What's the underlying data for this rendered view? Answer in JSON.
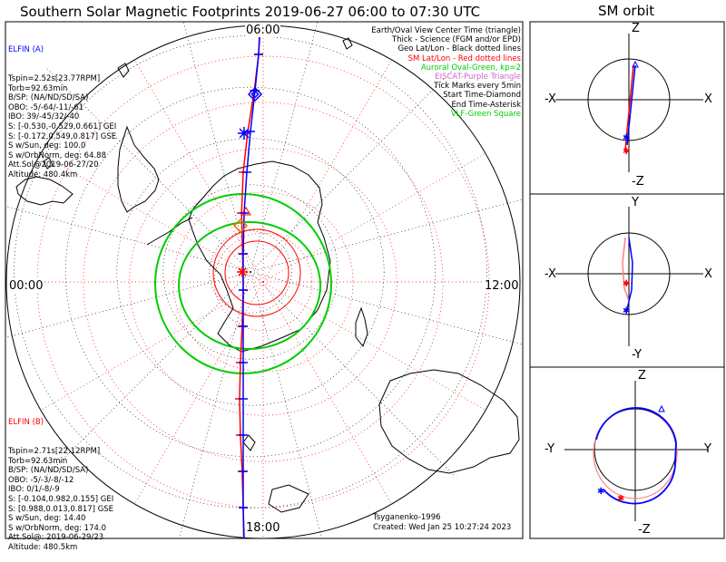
{
  "header": {
    "title": "Southern Solar Magnetic Footprints 2019-06-27 06:00 to 07:30 UTC",
    "sm_orbit_title": "SM orbit"
  },
  "map": {
    "clock_labels": {
      "top": "06:00",
      "left": "00:00",
      "right": "12:00",
      "bottom": "18:00"
    },
    "legend": [
      {
        "text": "Earth/Oval View Center Time (triangle)",
        "color": "#000000"
      },
      {
        "text": "Thick - Science (FGM and/or EPD)",
        "color": "#000000"
      },
      {
        "text": "Geo Lat/Lon - Black dotted lines",
        "color": "#000000"
      },
      {
        "text": "SM Lat/Lon - Red dotted lines",
        "color": "#ff0000"
      },
      {
        "text": "Auroral Oval-Green, kp=2",
        "color": "#00cc00"
      },
      {
        "text": "EISCAT-Purple Triangle",
        "color": "#cc66cc"
      },
      {
        "text": "Tick Marks every 5min",
        "color": "#000000"
      },
      {
        "text": "Start Time-Diamond",
        "color": "#000000"
      },
      {
        "text": "End Time-Asterisk",
        "color": "#000000"
      },
      {
        "text": "VLF-Green Square",
        "color": "#00cc00"
      }
    ],
    "elfin_a": {
      "title": "ELFIN (A)",
      "color": "#0000ff",
      "lines": [
        "Tspin=2.52s[23.77RPM]",
        "Torb=92.63min",
        "B/SP: (NA/ND/SD/SA)",
        "OBO: -5/-64/-11/-61",
        "IBO: 39/-45/32/-40",
        "S: [-0.530,-0.529,0.661] GEI",
        "S: [-0.172,0.549,0.817] GSE",
        "S w/Sun, deg: 100.0",
        "S w/OrbNorm, deg: 64.88",
        "Att.Sol@2019-06-27/20",
        "Altitude: 480.4km"
      ]
    },
    "elfin_b": {
      "title": "ELFIN (B)",
      "color": "#ff0000",
      "lines": [
        "Tspin=2.71s[22.12RPM]",
        "Torb=92.63min",
        "B/SP: (NA/ND/SD/SA)",
        "OBO: -5/-3/-8/-12",
        "IBO: 0/1/-8/-9",
        "S: [-0.104,0.982,0.155] GEI",
        "S: [0.988,0.013,0.817] GSE",
        "S w/Sun, deg: 14.40",
        "S w/OrbNorm, deg: 174.0",
        "Att.Sol@: 2019-06-29/23",
        "Altitude: 480.5km"
      ]
    },
    "footer": {
      "credit": "Tsyganenko-1996",
      "created": "Created: Wed Jan 25 10:27:24 2023"
    }
  },
  "sm_orbit_panels": [
    {
      "top": "Z",
      "bottom": "-Z",
      "left": "-X",
      "right": "X"
    },
    {
      "top": "Y",
      "bottom": "-Y",
      "left": "-X",
      "right": "X"
    },
    {
      "top": "Z",
      "bottom": "-Z",
      "left": "-Y",
      "right": "Y"
    }
  ],
  "chart_data": {
    "type": "polar-map",
    "title": "Southern Solar Magnetic Footprints 2019-06-27 06:00 to 07:30 UTC",
    "time_range_utc": [
      "2019-06-27 06:00",
      "2019-06-27 07:30"
    ],
    "clock_orientation": {
      "06:00": "top",
      "00:00": "left",
      "12:00": "right",
      "18:00": "bottom"
    },
    "sm_latitude_circles_deg": [
      -50,
      -60,
      -70,
      -80
    ],
    "series": [
      {
        "name": "ELFIN (A)",
        "color": "#0000ff"
      },
      {
        "name": "ELFIN (B)",
        "color": "#ff0000"
      }
    ],
    "auroral_oval_kp": 2,
    "tick_interval_min": 5
  }
}
